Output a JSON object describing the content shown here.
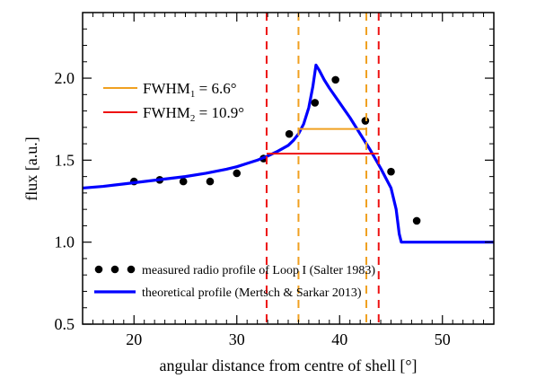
{
  "chart_data": {
    "type": "line",
    "title": "",
    "xlabel": "angular distance from centre of shell [°]",
    "ylabel": "flux [a.u.]",
    "xlim": [
      15,
      55
    ],
    "ylim": [
      0.5,
      2.4
    ],
    "x_ticks": [
      20,
      30,
      40,
      50
    ],
    "y_ticks": [
      0.5,
      1.0,
      1.5,
      2.0
    ],
    "x_tick_labels": [
      "20",
      "30",
      "40",
      "50"
    ],
    "y_tick_labels": [
      "0.5",
      "1.0",
      "1.5",
      "2.0"
    ],
    "grid": false,
    "series": [
      {
        "name": "measured radio profile of Loop I (Salter 1983)",
        "kind": "scatter",
        "color": "#000000",
        "x": [
          20.0,
          22.5,
          24.8,
          27.4,
          30.0,
          32.6,
          35.1,
          37.6,
          39.6,
          42.5,
          45.0,
          47.5
        ],
        "y": [
          1.37,
          1.38,
          1.37,
          1.37,
          1.42,
          1.51,
          1.66,
          1.85,
          1.99,
          1.74,
          1.43,
          1.13
        ]
      },
      {
        "name": "theoretical profile (Mertsch & Sarkar 2013)",
        "kind": "line",
        "color": "#0000ff",
        "x": [
          15,
          17,
          19,
          21,
          23,
          25,
          27,
          29,
          30,
          31,
          32,
          33,
          34,
          35,
          35.5,
          36,
          36.5,
          37,
          37.4,
          37.7,
          38,
          38.5,
          39,
          40,
          41,
          42,
          43,
          44,
          45,
          45.5,
          45.8,
          46,
          55
        ],
        "y": [
          1.33,
          1.34,
          1.355,
          1.37,
          1.385,
          1.4,
          1.42,
          1.445,
          1.46,
          1.48,
          1.5,
          1.525,
          1.555,
          1.59,
          1.62,
          1.66,
          1.72,
          1.82,
          1.95,
          2.08,
          2.05,
          1.99,
          1.94,
          1.85,
          1.76,
          1.66,
          1.56,
          1.45,
          1.33,
          1.2,
          1.05,
          1.0,
          1.0
        ]
      }
    ],
    "fwhm": [
      {
        "name": "FWHM1",
        "label": "FWHM",
        "subscript": "1",
        "value_text": " = 6.6°",
        "color": "#f0a020",
        "x_left": 36.0,
        "x_right": 42.6,
        "y": 1.69
      },
      {
        "name": "FWHM2",
        "label": "FWHM",
        "subscript": "2",
        "value_text": " = 10.9°",
        "color": "#ee1111",
        "x_left": 32.9,
        "x_right": 43.8,
        "y": 1.54
      }
    ],
    "legend_bottom": [
      {
        "label": "measured radio profile of Loop I (Salter 1983)",
        "marker": "dots"
      },
      {
        "label": "theoretical profile (Mertsch & Sarkar 2013)",
        "marker": "line"
      }
    ]
  }
}
